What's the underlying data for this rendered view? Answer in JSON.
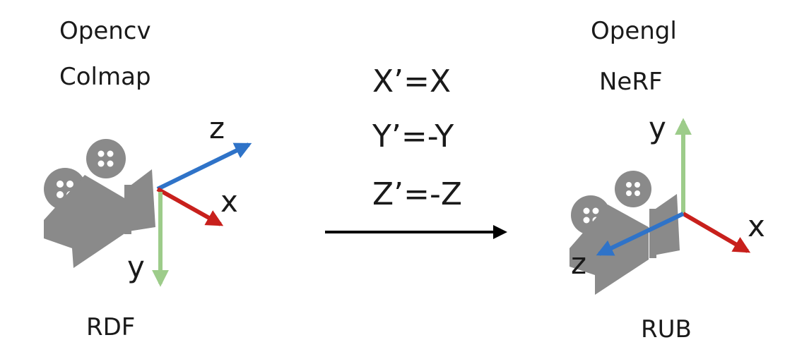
{
  "left": {
    "line1": "Opencv",
    "line2": "Colmap",
    "convention": "RDF",
    "axis_x": "x",
    "axis_y": "y",
    "axis_z": "z"
  },
  "right": {
    "line1": "Opengl",
    "line2": "NeRF",
    "convention": "RUB",
    "axis_x": "x",
    "axis_y": "y",
    "axis_z": "z"
  },
  "transform": {
    "eq1": "X’=X",
    "eq2": "Y’=-Y",
    "eq3": "Z’=-Z"
  },
  "colors": {
    "x_axis": "#c8201c",
    "y_axis": "#9dcc8a",
    "z_axis": "#2f73c8",
    "camera": "#8a8a8a",
    "text": "#1a1a1a"
  },
  "icons": {
    "left_camera": "camera-icon",
    "right_camera": "camera-icon"
  }
}
